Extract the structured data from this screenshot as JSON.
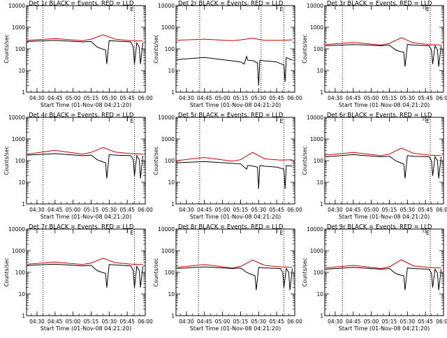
{
  "chart_data": [
    {
      "type": "line",
      "title": "Det 1r BLACK = Events, RED = LLD",
      "xlabel": "Start Time (01-Nov-08 04:21:20)",
      "ylabel": "Counts/sec",
      "x_ticks": [
        "04:30",
        "04:45",
        "05:00",
        "05:15",
        "05:30",
        "05:45",
        "06:00"
      ],
      "x_range": [
        "04:21:20",
        "06:00"
      ],
      "y_scale": "log",
      "ylim": [
        1,
        10000
      ],
      "y_ticks": [
        "1",
        "10",
        "100",
        "1000",
        "10000"
      ],
      "vlines": [
        "04:35",
        "05:51"
      ],
      "annotation": "E",
      "series": [
        {
          "name": "BLACK = Events",
          "color": "#000000",
          "x": [
            "04:22",
            "04:45",
            "05:08",
            "05:15",
            "05:20",
            "05:24",
            "05:27",
            "05:28",
            "05:30",
            "05:35",
            "05:48",
            "05:50",
            "05:51",
            "05:53",
            "05:55",
            "05:56",
            "05:58"
          ],
          "values": [
            220,
            250,
            210,
            220,
            120,
            100,
            90,
            20,
            240,
            230,
            210,
            120,
            20,
            190,
            120,
            20,
            190
          ]
        },
        {
          "name": "RED = LLD",
          "color": "#cc0000",
          "x": [
            "04:22",
            "04:45",
            "05:08",
            "05:15",
            "05:25",
            "05:35",
            "05:48",
            "05:58"
          ],
          "values": [
            250,
            300,
            240,
            280,
            450,
            280,
            240,
            230
          ]
        }
      ]
    },
    {
      "type": "line",
      "title": "Det 2r BLACK = Events, RED = LLD",
      "xlabel": "Start Time (01-Nov-08 04:21:20)",
      "ylabel": "Counts/sec",
      "x_ticks": [
        "04:30",
        "04:45",
        "05:00",
        "05:15",
        "05:30",
        "05:45",
        "06:00"
      ],
      "x_range": [
        "04:21:20",
        "06:00"
      ],
      "y_scale": "log",
      "ylim": [
        1,
        10000
      ],
      "y_ticks": [
        "1",
        "10",
        "100",
        "1000",
        "10000"
      ],
      "vlines": [
        "04:41",
        "05:32",
        "05:51"
      ],
      "annotation": "E",
      "series": [
        {
          "name": "BLACK = Events",
          "color": "#000000",
          "x": [
            "04:22",
            "04:45",
            "05:08",
            "05:15",
            "05:18",
            "05:20",
            "05:21",
            "05:26",
            "05:29",
            "05:30",
            "05:31",
            "05:35",
            "05:45",
            "05:51",
            "05:52",
            "05:53",
            "05:58"
          ],
          "values": [
            32,
            40,
            28,
            25,
            20,
            45,
            30,
            28,
            22,
            2,
            30,
            28,
            25,
            18,
            3,
            40,
            30
          ]
        },
        {
          "name": "RED = LLD",
          "color": "#cc0000",
          "x": [
            "04:22",
            "04:45",
            "05:08",
            "05:15",
            "05:25",
            "05:35",
            "05:48",
            "05:58"
          ],
          "values": [
            250,
            280,
            240,
            260,
            310,
            250,
            250,
            260
          ]
        }
      ]
    },
    {
      "type": "line",
      "title": "Det 3r BLACK = Events, RED = LLD",
      "xlabel": "Start Time (01-Nov-08 04:21:20)",
      "ylabel": "Counts/sec",
      "x_ticks": [
        "04:30",
        "04:45",
        "05:00",
        "05:15",
        "05:30",
        "05:45",
        "06:00"
      ],
      "x_range": [
        "04:21:20",
        "06:00"
      ],
      "y_scale": "log",
      "ylim": [
        1,
        10000
      ],
      "y_ticks": [
        "1",
        "10",
        "100",
        "1000",
        "10000"
      ],
      "vlines": [
        "04:36",
        "05:49"
      ],
      "annotation": "E",
      "series": [
        {
          "name": "BLACK = Events",
          "color": "#000000",
          "x": [
            "04:22",
            "04:45",
            "05:08",
            "05:15",
            "05:20",
            "05:24",
            "05:27",
            "05:28",
            "05:30",
            "05:35",
            "05:48",
            "05:50",
            "05:51",
            "05:53",
            "05:55",
            "05:56",
            "05:58"
          ],
          "values": [
            140,
            160,
            140,
            150,
            90,
            75,
            70,
            15,
            160,
            150,
            140,
            90,
            20,
            140,
            90,
            15,
            140
          ]
        },
        {
          "name": "RED = LLD",
          "color": "#cc0000",
          "x": [
            "04:22",
            "04:45",
            "05:08",
            "05:15",
            "05:25",
            "05:35",
            "05:48",
            "05:58"
          ],
          "values": [
            160,
            200,
            150,
            180,
            330,
            190,
            160,
            150
          ]
        }
      ]
    },
    {
      "type": "line",
      "title": "Det 4r BLACK = Events, RED = LLD",
      "xlabel": "Start Time (01-Nov-08 04:21:20)",
      "ylabel": "Counts/sec",
      "x_ticks": [
        "04:30",
        "04:45",
        "05:00",
        "05:15",
        "05:30",
        "05:45",
        "06:00"
      ],
      "x_range": [
        "04:21:20",
        "06:00"
      ],
      "y_scale": "log",
      "ylim": [
        1,
        10000
      ],
      "y_ticks": [
        "1",
        "10",
        "100",
        "1000",
        "10000"
      ],
      "vlines": [
        "04:35",
        "05:51"
      ],
      "annotation": "E",
      "series": [
        {
          "name": "BLACK = Events",
          "color": "#000000",
          "x": [
            "04:22",
            "04:45",
            "05:08",
            "05:15",
            "05:20",
            "05:24",
            "05:27",
            "05:28",
            "05:30",
            "05:35",
            "05:48",
            "05:50",
            "05:51",
            "05:53",
            "05:55",
            "05:56",
            "05:58"
          ],
          "values": [
            180,
            210,
            170,
            180,
            110,
            90,
            80,
            15,
            190,
            180,
            170,
            110,
            20,
            170,
            110,
            15,
            170
          ]
        },
        {
          "name": "RED = LLD",
          "color": "#cc0000",
          "x": [
            "04:22",
            "04:45",
            "05:08",
            "05:15",
            "05:25",
            "05:35",
            "05:48",
            "05:58"
          ],
          "values": [
            200,
            300,
            200,
            240,
            400,
            250,
            210,
            200
          ]
        }
      ]
    },
    {
      "type": "line",
      "title": "Det 5r BLACK = Events, RED = LLD",
      "xlabel": "Start Time (01-Nov-08 04:21:20)",
      "ylabel": "Counts/sec",
      "x_ticks": [
        "04:30",
        "04:45",
        "05:00",
        "05:15",
        "05:30",
        "05:45",
        "06:00"
      ],
      "x_range": [
        "04:21:20",
        "06:00"
      ],
      "y_scale": "log",
      "ylim": [
        1,
        10000
      ],
      "y_ticks": [
        "1",
        "10",
        "100",
        "1000",
        "10000"
      ],
      "vlines": [
        "04:41",
        "05:51"
      ],
      "annotation": "E",
      "series": [
        {
          "name": "BLACK = Events",
          "color": "#000000",
          "x": [
            "04:22",
            "04:45",
            "05:08",
            "05:15",
            "05:18",
            "05:20",
            "05:21",
            "05:26",
            "05:29",
            "05:30",
            "05:31",
            "05:35",
            "05:45",
            "05:51",
            "05:52",
            "05:53",
            "05:58"
          ],
          "values": [
            80,
            90,
            75,
            70,
            50,
            40,
            60,
            55,
            50,
            5,
            60,
            55,
            50,
            40,
            5,
            60,
            55
          ]
        },
        {
          "name": "RED = LLD",
          "color": "#cc0000",
          "x": [
            "04:22",
            "04:45",
            "05:08",
            "05:15",
            "05:25",
            "05:35",
            "05:48",
            "05:58"
          ],
          "values": [
            100,
            140,
            95,
            110,
            240,
            120,
            105,
            110
          ]
        }
      ]
    },
    {
      "type": "line",
      "title": "Det 6r BLACK = Events, RED = LLD",
      "xlabel": "Start Time (01-Nov-08 04:21:20)",
      "ylabel": "Counts/sec",
      "x_ticks": [
        "04:30",
        "04:45",
        "05:00",
        "05:15",
        "05:30",
        "05:45",
        "06:00"
      ],
      "x_range": [
        "04:21:20",
        "06:00"
      ],
      "y_scale": "log",
      "ylim": [
        1,
        10000
      ],
      "y_ticks": [
        "1",
        "10",
        "100",
        "1000",
        "10000"
      ],
      "vlines": [
        "04:36",
        "05:49"
      ],
      "annotation": "E",
      "series": [
        {
          "name": "BLACK = Events",
          "color": "#000000",
          "x": [
            "04:22",
            "04:45",
            "05:08",
            "05:15",
            "05:20",
            "05:24",
            "05:27",
            "05:28",
            "05:30",
            "05:35",
            "05:48",
            "05:50",
            "05:51",
            "05:53",
            "05:55",
            "05:56",
            "05:58"
          ],
          "values": [
            150,
            190,
            150,
            160,
            100,
            80,
            70,
            15,
            170,
            160,
            150,
            100,
            20,
            150,
            100,
            15,
            150
          ]
        },
        {
          "name": "RED = LLD",
          "color": "#cc0000",
          "x": [
            "04:22",
            "04:45",
            "05:08",
            "05:15",
            "05:25",
            "05:35",
            "05:48",
            "05:58"
          ],
          "values": [
            180,
            240,
            170,
            200,
            380,
            220,
            180,
            170
          ]
        }
      ]
    },
    {
      "type": "line",
      "title": "Det 7r BLACK = Events, RED = LLD",
      "xlabel": "Start Time (01-Nov-08 04:21:20)",
      "ylabel": "Counts/sec",
      "x_ticks": [
        "04:30",
        "04:45",
        "05:00",
        "05:15",
        "05:30",
        "05:45",
        "06:00"
      ],
      "x_range": [
        "04:21:20",
        "06:00"
      ],
      "y_scale": "log",
      "ylim": [
        1,
        10000
      ],
      "y_ticks": [
        "1",
        "10",
        "100",
        "1000",
        "10000"
      ],
      "vlines": [
        "04:35",
        "05:51"
      ],
      "annotation": "E",
      "series": [
        {
          "name": "BLACK = Events",
          "color": "#000000",
          "x": [
            "04:22",
            "04:45",
            "05:08",
            "05:15",
            "05:20",
            "05:24",
            "05:27",
            "05:28",
            "05:30",
            "05:35",
            "05:48",
            "05:50",
            "05:51",
            "05:53",
            "05:55",
            "05:56",
            "05:58"
          ],
          "values": [
            210,
            240,
            200,
            210,
            120,
            100,
            90,
            20,
            230,
            220,
            200,
            120,
            20,
            190,
            120,
            20,
            190
          ]
        },
        {
          "name": "RED = LLD",
          "color": "#cc0000",
          "x": [
            "04:22",
            "04:45",
            "05:08",
            "05:15",
            "05:25",
            "05:35",
            "05:48",
            "05:58"
          ],
          "values": [
            240,
            300,
            230,
            270,
            450,
            280,
            240,
            230
          ]
        }
      ]
    },
    {
      "type": "line",
      "title": "Det 8r BLACK = Events, RED = LLD",
      "xlabel": "Start Time (01-Nov-08 04:21:20)",
      "ylabel": "Counts/sec",
      "x_ticks": [
        "04:30",
        "04:45",
        "05:00",
        "05:15",
        "05:30",
        "05:45",
        "06:00"
      ],
      "x_range": [
        "04:21:20",
        "06:00"
      ],
      "y_scale": "log",
      "ylim": [
        1,
        10000
      ],
      "y_ticks": [
        "1",
        "10",
        "100",
        "1000",
        "10000"
      ],
      "vlines": [
        "04:40",
        "05:51"
      ],
      "annotation": "E",
      "series": [
        {
          "name": "BLACK = Events",
          "color": "#000000",
          "x": [
            "04:22",
            "04:45",
            "05:08",
            "05:15",
            "05:20",
            "05:24",
            "05:27",
            "05:28",
            "05:30",
            "05:35",
            "05:48",
            "05:50",
            "05:51",
            "05:53",
            "05:55",
            "05:56",
            "05:58"
          ],
          "values": [
            150,
            180,
            150,
            160,
            100,
            80,
            70,
            15,
            170,
            160,
            150,
            100,
            20,
            150,
            100,
            15,
            150
          ]
        },
        {
          "name": "RED = LLD",
          "color": "#cc0000",
          "x": [
            "04:22",
            "04:45",
            "05:08",
            "05:15",
            "05:25",
            "05:35",
            "05:48",
            "05:58"
          ],
          "values": [
            170,
            230,
            160,
            190,
            370,
            210,
            180,
            170
          ]
        }
      ]
    },
    {
      "type": "line",
      "title": "Det 9r BLACK = Events, RED = LLD",
      "xlabel": "Start Time (01-Nov-08 04:21:20)",
      "ylabel": "Counts/sec",
      "x_ticks": [
        "04:30",
        "04:45",
        "05:00",
        "05:15",
        "05:30",
        "05:45",
        "06:00"
      ],
      "x_range": [
        "04:21:20",
        "06:00"
      ],
      "y_scale": "log",
      "ylim": [
        1,
        10000
      ],
      "y_ticks": [
        "1",
        "10",
        "100",
        "1000",
        "10000"
      ],
      "vlines": [
        "04:36",
        "05:49"
      ],
      "annotation": "E",
      "series": [
        {
          "name": "BLACK = Events",
          "color": "#000000",
          "x": [
            "04:22",
            "04:45",
            "05:08",
            "05:15",
            "05:20",
            "05:24",
            "05:27",
            "05:28",
            "05:30",
            "05:35",
            "05:48",
            "05:50",
            "05:51",
            "05:53",
            "05:55",
            "05:56",
            "05:58"
          ],
          "values": [
            140,
            170,
            140,
            150,
            90,
            75,
            70,
            15,
            160,
            150,
            140,
            90,
            20,
            140,
            90,
            15,
            140
          ]
        },
        {
          "name": "RED = LLD",
          "color": "#cc0000",
          "x": [
            "04:22",
            "04:45",
            "05:08",
            "05:15",
            "05:25",
            "05:35",
            "05:48",
            "05:58"
          ],
          "values": [
            160,
            210,
            150,
            180,
            380,
            200,
            170,
            160
          ]
        }
      ]
    }
  ]
}
